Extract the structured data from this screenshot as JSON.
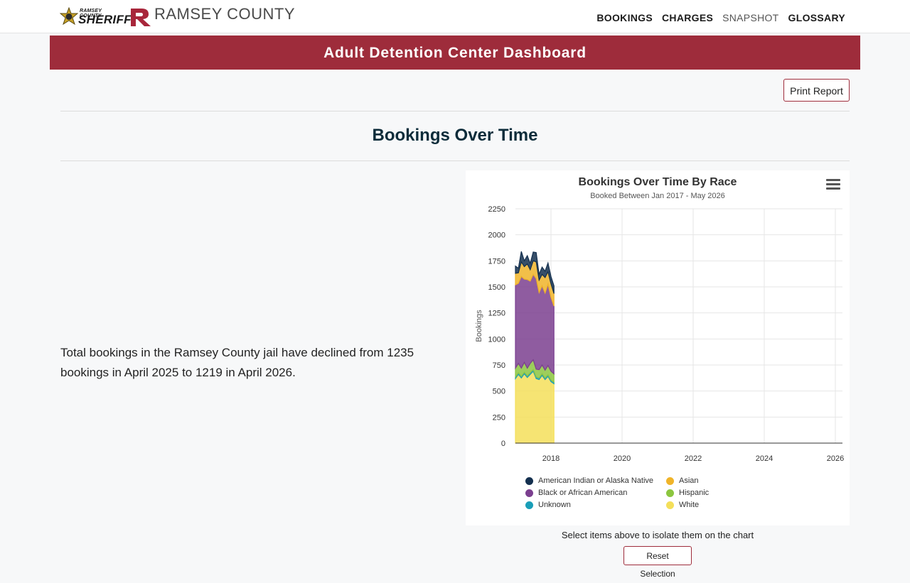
{
  "header": {
    "sheriff_small": "RAMSEY COUNTY",
    "sheriff_big": "SHERIFF",
    "county_name": "RAMSEY COUNTY",
    "nav": [
      "BOOKINGS",
      "CHARGES",
      "SNAPSHOT",
      "GLOSSARY"
    ]
  },
  "banner": {
    "title": "Adult Detention Center Dashboard"
  },
  "toolbar": {
    "print_label": "Print Report"
  },
  "section": {
    "title": "Bookings Over Time"
  },
  "summary": {
    "text": "Total bookings in the Ramsey County jail have declined from 1235 bookings in April 2025 to 1219 in April 2026."
  },
  "chart_data": {
    "type": "area",
    "stacked": true,
    "title": "Bookings Over Time By Race",
    "subtitle": "Booked Between Jan 2017 - May 2026",
    "xlabel": "",
    "ylabel": "Bookings",
    "xlim": [
      2017.0,
      2026.2
    ],
    "ylim": [
      0,
      2250
    ],
    "yticks": [
      0,
      250,
      500,
      750,
      1000,
      1250,
      1500,
      1750,
      2000,
      2250
    ],
    "xticks": [
      2018,
      2020,
      2022,
      2024,
      2026
    ],
    "x": [
      2017.0,
      2017.083,
      2017.167,
      2017.25,
      2017.333,
      2017.417,
      2017.5,
      2017.583,
      2017.667,
      2017.75,
      2017.833,
      2017.917,
      2018.0,
      2018.083
    ],
    "series": [
      {
        "name": "White",
        "color": "#f4df5a",
        "values": [
          620,
          660,
          625,
          665,
          630,
          660,
          690,
          620,
          610,
          650,
          610,
          640,
          590,
          570
        ]
      },
      {
        "name": "Unknown",
        "color": "#1a9eb8",
        "values": [
          15,
          15,
          15,
          15,
          15,
          15,
          15,
          15,
          15,
          15,
          15,
          15,
          15,
          15
        ]
      },
      {
        "name": "Hispanic",
        "color": "#8cc63f",
        "values": [
          85,
          90,
          80,
          95,
          75,
          90,
          95,
          75,
          80,
          85,
          75,
          90,
          85,
          80
        ]
      },
      {
        "name": "Black or African American",
        "color": "#7b3f8f",
        "values": [
          800,
          770,
          880,
          800,
          850,
          790,
          820,
          870,
          740,
          760,
          740,
          780,
          710,
          650
        ]
      },
      {
        "name": "Asian",
        "color": "#f0b429",
        "values": [
          110,
          100,
          140,
          120,
          150,
          110,
          130,
          160,
          120,
          110,
          150,
          120,
          130,
          120
        ]
      },
      {
        "name": "American Indian or Alaska Native",
        "color": "#14304f",
        "values": [
          70,
          45,
          100,
          55,
          80,
          60,
          85,
          90,
          55,
          70,
          60,
          85,
          70,
          75
        ]
      }
    ],
    "legend_order": [
      "American Indian or Alaska Native",
      "Asian",
      "Black or African American",
      "Hispanic",
      "Unknown",
      "White"
    ],
    "legend_placement": "bottom",
    "grid": true
  },
  "chart_ui": {
    "menu_icon": "hamburger-menu-icon"
  },
  "footer": {
    "select_note": "Select items above to isolate them on the chart",
    "reset_label": "Reset Selection"
  },
  "colors": {
    "accent": "#9e2c3b",
    "title": "#0d2c3a"
  }
}
